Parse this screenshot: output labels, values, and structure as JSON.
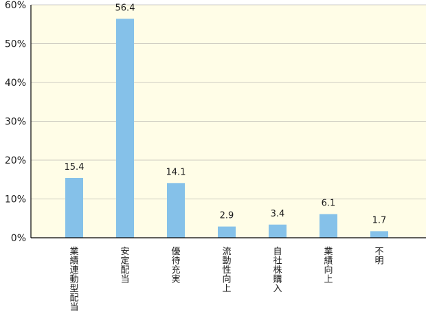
{
  "chart_data": {
    "type": "bar",
    "categories": [
      "業績連動型配当",
      "安定配当",
      "優待充実",
      "流動性向上",
      "自社株購入",
      "業績向上",
      "不明"
    ],
    "values": [
      15.4,
      56.4,
      14.1,
      2.9,
      3.4,
      6.1,
      1.7
    ],
    "data_labels": [
      "15.4",
      "56.4",
      "14.1",
      "2.9",
      "3.4",
      "6.1",
      "1.7"
    ],
    "ylim": [
      0,
      60
    ],
    "yticks": [
      0,
      10,
      20,
      30,
      40,
      50,
      60
    ],
    "ytick_labels": [
      "0%",
      "10%",
      "20%",
      "30%",
      "40%",
      "50%",
      "60%"
    ],
    "grid": true,
    "colors": {
      "bar": "#85c1e9",
      "plot_background": "#fffde7",
      "grid": "#999999",
      "axis": "#000000"
    }
  }
}
